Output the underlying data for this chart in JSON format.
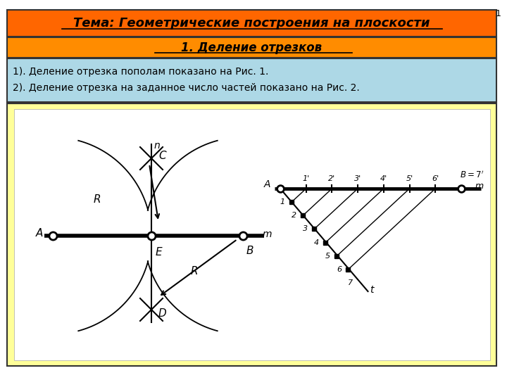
{
  "title1": "Тема: Геометрические построения на плоскости",
  "title2": "1. Деление отрезков",
  "text1": "1). Деление отрезка пополам показано на Рис. 1.",
  "text2": "2). Деление отрезка на заданное число частей показано на Рис. 2.",
  "page_num": "1",
  "bg_color": "#ffffff",
  "title1_bg": "#FF6600",
  "title2_bg": "#FF8C00",
  "text_bg": "#ADD8E6",
  "diagram_bg": "#FFFF99",
  "border_color": "#333333"
}
